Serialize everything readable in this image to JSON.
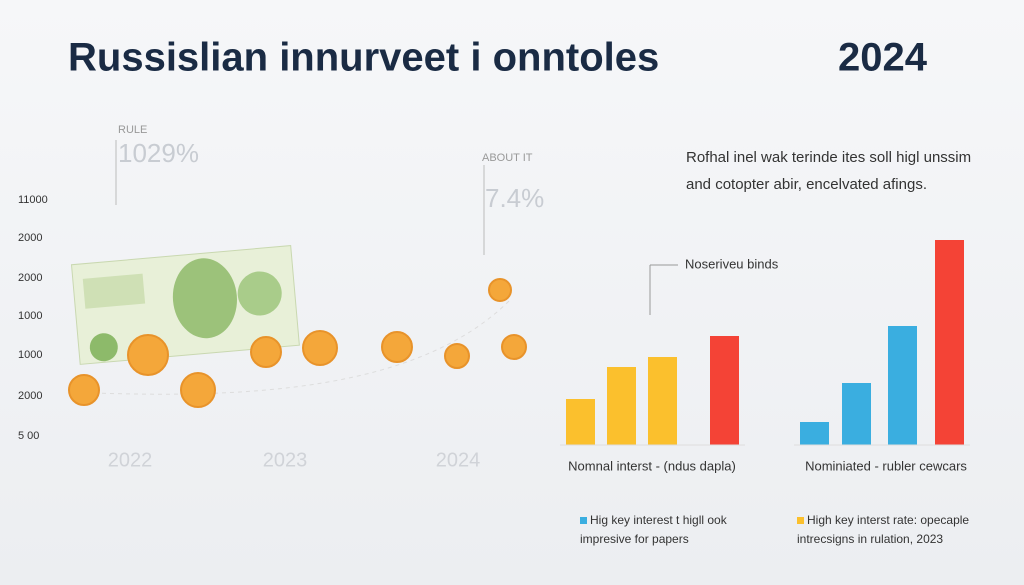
{
  "header": {
    "title": "Russislian innurveet i onntoles",
    "year": "2024"
  },
  "left_panel": {
    "y_labels": [
      "11000",
      "2000",
      "2000",
      "1000",
      "1000",
      "2000",
      "5 00"
    ],
    "x_labels": [
      "2022",
      "2023",
      "2024"
    ],
    "annotations": [
      {
        "label": "RULE",
        "value": "1029%"
      },
      {
        "label": "ABOUT IT",
        "value": "7.4%"
      }
    ]
  },
  "description": [
    "Rofhal inel wak terinde ites soll higl unssim",
    "and cotopter abir, encelvated afings."
  ],
  "callout": "Noserivеu binds",
  "chart_data": [
    {
      "type": "bar",
      "x_label": "Nomnal interst - (ndus dapla)",
      "categories": [
        null,
        null,
        null,
        null
      ],
      "values": [
        46,
        78,
        88,
        109
      ],
      "colors": [
        "#fbc02d",
        "#fbc02d",
        "#fbc02d",
        "#f44336"
      ],
      "ylim": [
        0,
        210
      ]
    },
    {
      "type": "bar",
      "x_label": "Nominiated - rubler cewcars",
      "categories": [
        null,
        null,
        null,
        null
      ],
      "values": [
        23,
        62,
        119,
        205
      ],
      "colors": [
        "#3aaee0",
        "#3aaee0",
        "#3aaee0",
        "#f44336"
      ],
      "ylim": [
        0,
        210
      ]
    }
  ],
  "notes": [
    {
      "color": "#3aaee0",
      "lines": [
        "Hig key interest t higll ook",
        "impresive for papers"
      ]
    },
    {
      "color": "#fbc02d",
      "lines": [
        "High key interst rate: opecaple",
        "intrecsigns in rulation, 2023"
      ]
    }
  ]
}
